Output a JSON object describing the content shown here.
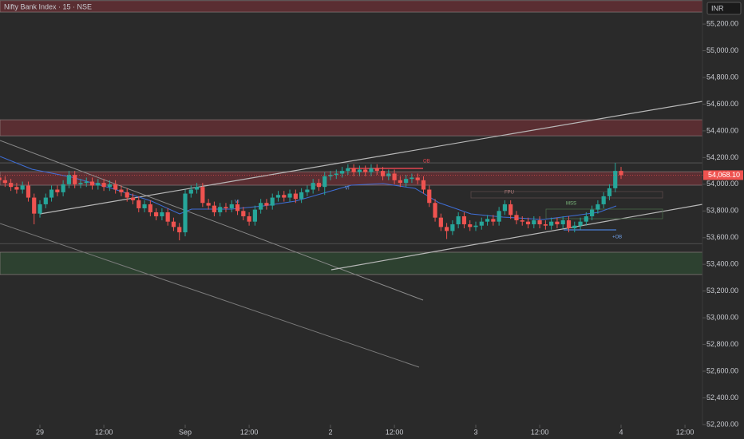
{
  "chart_data": {
    "type": "candlestick",
    "title": "Nifty Bank Index · 15 · NSE",
    "currency": "INR",
    "up_color": "#26a69a",
    "down_color": "#ef5350",
    "x": [
      -7,
      -6,
      -5,
      -4,
      -3,
      -2,
      -1,
      0,
      1,
      2,
      3,
      4,
      5,
      6,
      7,
      8,
      9,
      10,
      11,
      12,
      13,
      14,
      15,
      16,
      17,
      18,
      19,
      20,
      21,
      22,
      23,
      24,
      25,
      26,
      27,
      28,
      29,
      30,
      31,
      32,
      33,
      34,
      35,
      36,
      37,
      38,
      39,
      40,
      41,
      42,
      43,
      44,
      45,
      46,
      47,
      48,
      49,
      50,
      51,
      52,
      53,
      54,
      55,
      56,
      57,
      58,
      59,
      60,
      61,
      62,
      63,
      64,
      65,
      66,
      67,
      68,
      69,
      70,
      71,
      72,
      73,
      74,
      75,
      76,
      77,
      78,
      79,
      80,
      81,
      82,
      83,
      84,
      85,
      86,
      87,
      88,
      89,
      90,
      91,
      92,
      93,
      94,
      95,
      96,
      97,
      98,
      99,
      100
    ],
    "open": [
      54050,
      54030,
      54010,
      53980,
      53960,
      53990,
      53900,
      53780,
      53850,
      53900,
      53960,
      53940,
      54000,
      54070,
      54000,
      54010,
      54020,
      53990,
      54010,
      53980,
      54000,
      53960,
      53940,
      53900,
      53880,
      53820,
      53850,
      53790,
      53760,
      53790,
      53720,
      53680,
      53640,
      53930,
      53960,
      53980,
      53860,
      53840,
      53790,
      53830,
      53820,
      53850,
      53800,
      53760,
      53720,
      53810,
      53860,
      53840,
      53900,
      53920,
      53900,
      53930,
      53890,
      53940,
      53960,
      54010,
      53980,
      54060,
      54070,
      54080,
      54100,
      54120,
      54090,
      54110,
      54090,
      54120,
      54100,
      54060,
      54080,
      54030,
      54010,
      54040,
      54050,
      54030,
      53960,
      53860,
      53750,
      53680,
      53650,
      53700,
      53760,
      53700,
      53680,
      53690,
      53720,
      53740,
      53720,
      53800,
      53850,
      53770,
      53730,
      53720,
      53700,
      53730,
      53700,
      53690,
      53720,
      53700,
      53730,
      53670,
      53690,
      53720,
      53760,
      53810,
      53850,
      53910,
      53970,
      54100
    ],
    "high": [
      54080,
      54060,
      54040,
      54010,
      54020,
      54020,
      53930,
      53880,
      53930,
      53990,
      53990,
      54030,
      54100,
      54100,
      54040,
      54050,
      54050,
      54040,
      54040,
      54030,
      54030,
      53990,
      53970,
      53930,
      53910,
      53880,
      53880,
      53820,
      53820,
      53820,
      53750,
      53710,
      53960,
      53990,
      54010,
      54010,
      53890,
      53870,
      53860,
      53860,
      53880,
      53880,
      53830,
      53790,
      53840,
      53890,
      53890,
      53930,
      53950,
      53950,
      53960,
      53960,
      53970,
      53990,
      54040,
      54040,
      54090,
      54100,
      54110,
      54130,
      54150,
      54150,
      54140,
      54140,
      54150,
      54150,
      54130,
      54110,
      54110,
      54060,
      54070,
      54080,
      54080,
      54060,
      53990,
      53890,
      53780,
      53710,
      53730,
      53790,
      53790,
      53730,
      53720,
      53750,
      53770,
      53770,
      53830,
      53880,
      53880,
      53800,
      53760,
      53750,
      53760,
      53760,
      53730,
      53750,
      53750,
      53760,
      53760,
      53720,
      53750,
      53790,
      53840,
      53880,
      53940,
      54000,
      54160,
      54130
    ],
    "low": [
      54000,
      53980,
      53950,
      53930,
      53930,
      53870,
      53700,
      53750,
      53820,
      53870,
      53910,
      53910,
      53970,
      53970,
      53970,
      53980,
      53960,
      53960,
      53950,
      53950,
      53930,
      53910,
      53870,
      53850,
      53790,
      53790,
      53760,
      53730,
      53730,
      53690,
      53650,
      53580,
      53610,
      53900,
      53930,
      53830,
      53810,
      53760,
      53760,
      53790,
      53790,
      53770,
      53730,
      53690,
      53690,
      53780,
      53810,
      53810,
      53870,
      53870,
      53870,
      53860,
      53860,
      53910,
      53930,
      53950,
      53920,
      54030,
      54040,
      54050,
      54070,
      54060,
      54060,
      54060,
      54060,
      54070,
      54030,
      54030,
      54000,
      53980,
      53980,
      54010,
      54000,
      53930,
      53830,
      53720,
      53650,
      53590,
      53620,
      53670,
      53670,
      53650,
      53650,
      53660,
      53690,
      53690,
      53690,
      53770,
      53740,
      53700,
      53690,
      53670,
      53670,
      53670,
      53660,
      53660,
      53670,
      53670,
      53640,
      53640,
      53660,
      53690,
      53730,
      53780,
      53820,
      53880,
      53940,
      54040
    ],
    "close": [
      54030,
      54010,
      53980,
      53960,
      53990,
      53900,
      53780,
      53850,
      53900,
      53960,
      53940,
      54000,
      54070,
      54000,
      54010,
      54020,
      53990,
      54010,
      53980,
      54000,
      53960,
      53940,
      53900,
      53880,
      53820,
      53850,
      53790,
      53760,
      53790,
      53720,
      53680,
      53640,
      53930,
      53960,
      53980,
      53860,
      53840,
      53790,
      53830,
      53820,
      53850,
      53800,
      53760,
      53720,
      53810,
      53860,
      53840,
      53900,
      53920,
      53900,
      53930,
      53890,
      53940,
      53960,
      54010,
      53980,
      54060,
      54070,
      54080,
      54100,
      54120,
      54090,
      54110,
      54090,
      54120,
      54100,
      54060,
      54080,
      54030,
      54010,
      54040,
      54050,
      54030,
      53960,
      53860,
      53750,
      53680,
      53650,
      53700,
      53760,
      53700,
      53680,
      53690,
      53720,
      53740,
      53720,
      53800,
      53850,
      53770,
      53730,
      53720,
      53700,
      53730,
      53700,
      53690,
      53720,
      53700,
      53730,
      53670,
      53690,
      53720,
      53760,
      53810,
      53850,
      53910,
      53970,
      54100,
      54068.1
    ],
    "last_price": {
      "value": 54068.1,
      "label": "54,068.10"
    },
    "zones": [
      {
        "top": 55375,
        "bottom": 55290,
        "color": "#6b3035"
      },
      {
        "top": 54483,
        "bottom": 54363,
        "color": "#6b3035"
      },
      {
        "top": 54094,
        "bottom": 53993,
        "color": "#6b3035"
      },
      {
        "top": 53491,
        "bottom": 53324,
        "color": "#2f4a33"
      }
    ],
    "levels": [
      54160,
      53555
    ],
    "annotations": [
      "OB",
      "VI",
      "VI",
      "FPU",
      "MSS",
      "+OB"
    ],
    "xlim": [
      -6.87,
      114.01
    ],
    "ylim": [
      52092,
      55380
    ],
    "xticks": [
      {
        "value": 0,
        "label": "29"
      },
      {
        "value": 11,
        "label": "12:00"
      },
      {
        "value": 25,
        "label": "Sep"
      },
      {
        "value": 36,
        "label": "12:00"
      },
      {
        "value": 50,
        "label": "2"
      },
      {
        "value": 61,
        "label": "12:00"
      },
      {
        "value": 75,
        "label": "3"
      },
      {
        "value": 86,
        "label": "12:00"
      },
      {
        "value": 100,
        "label": "4"
      },
      {
        "value": 111,
        "label": "12:00"
      }
    ],
    "yticks": [
      {
        "value": 55200,
        "label": "55,200.00"
      },
      {
        "value": 55000,
        "label": "55,000.00"
      },
      {
        "value": 54800,
        "label": "54,800.00"
      },
      {
        "value": 54600,
        "label": "54,600.00"
      },
      {
        "value": 54400,
        "label": "54,400.00"
      },
      {
        "value": 54200,
        "label": "54,200.00"
      },
      {
        "value": 54000,
        "label": "54,000.00"
      },
      {
        "value": 53800,
        "label": "53,800.00"
      },
      {
        "value": 53600,
        "label": "53,600.00"
      },
      {
        "value": 53400,
        "label": "53,400.00"
      },
      {
        "value": 53200,
        "label": "53,200.00"
      },
      {
        "value": 53000,
        "label": "53,000.00"
      },
      {
        "value": 52800,
        "label": "52,800.00"
      },
      {
        "value": 52600,
        "label": "52,600.00"
      },
      {
        "value": 52400,
        "label": "52,400.00"
      },
      {
        "value": 52200,
        "label": "52,200.00"
      }
    ]
  }
}
